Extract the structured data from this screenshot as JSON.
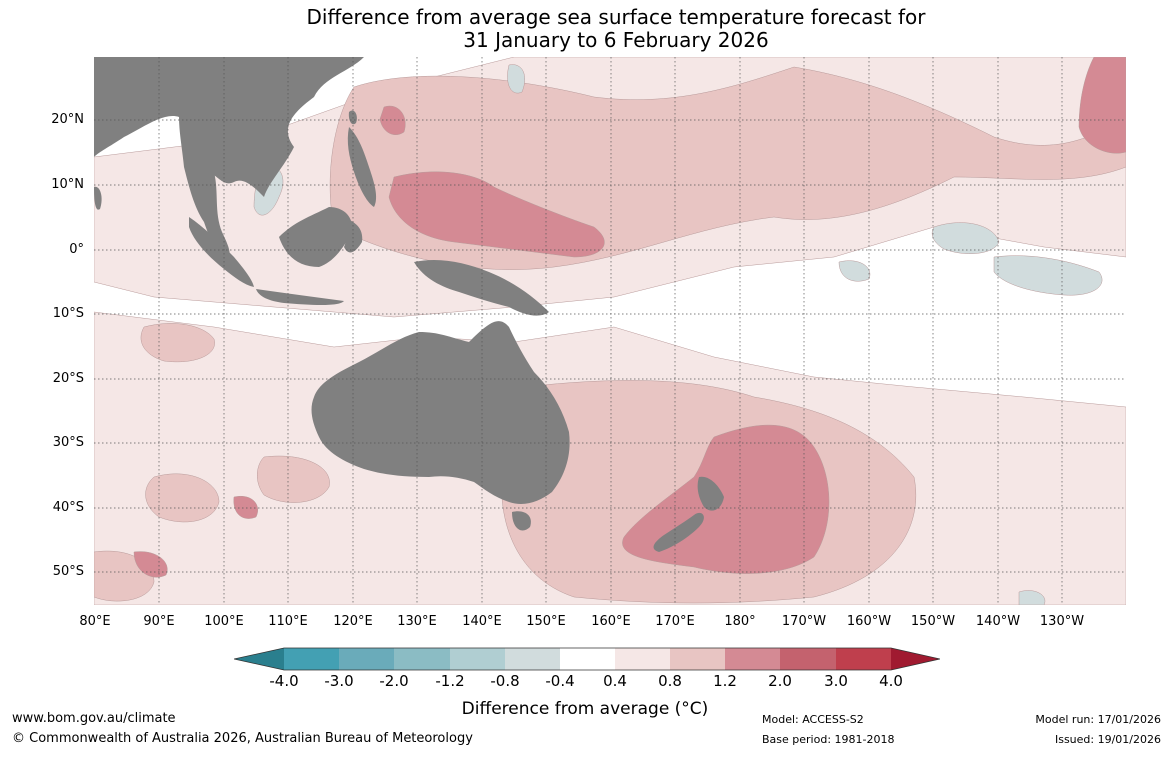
{
  "title": {
    "line1": "Difference from average sea surface temperature forecast for",
    "line2": "31 January to 6 February 2026"
  },
  "map": {
    "lat_labels": [
      "20°N",
      "10°N",
      "0°",
      "10°S",
      "20°S",
      "30°S",
      "40°S",
      "50°S"
    ],
    "lon_labels": [
      "80°E",
      "90°E",
      "100°E",
      "110°E",
      "120°E",
      "130°E",
      "140°E",
      "150°E",
      "160°E",
      "170°E",
      "180°",
      "170°W",
      "160°W",
      "150°W",
      "140°W",
      "130°W"
    ],
    "land_color": "#808080",
    "ocean_color": "#ffffff"
  },
  "colorbar": {
    "labels": [
      "-4.0",
      "-3.0",
      "-2.0",
      "-1.2",
      "-0.8",
      "-0.4",
      "0.4",
      "0.8",
      "1.2",
      "2.0",
      "3.0",
      "4.0"
    ],
    "colors": [
      "#2a7f8e",
      "#43a0b3",
      "#6aabba",
      "#8bbcc4",
      "#b0ced2",
      "#d1dcdd",
      "#ffffff",
      "#f5e7e6",
      "#e8c5c3",
      "#d48a94",
      "#c4626e",
      "#bf3f4d",
      "#a01a30"
    ],
    "title": "Difference from average (°C)"
  },
  "footer": {
    "website": "www.bom.gov.au/climate",
    "copyright": "© Commonwealth of Australia 2026, Australian Bureau of Meteorology",
    "model": "Model: ACCESS-S2",
    "base_period": "Base period: 1981-2018",
    "model_run": "Model run: 17/01/2026",
    "issued": "Issued: 19/01/2026"
  }
}
